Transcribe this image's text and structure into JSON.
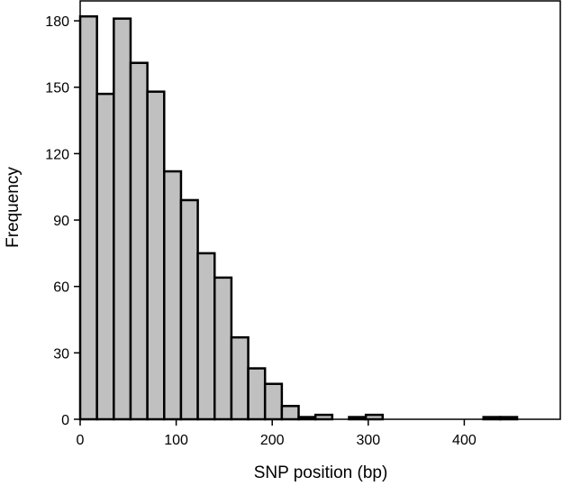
{
  "chart_data": {
    "type": "bar",
    "title": "",
    "xlabel": "SNP position (bp)",
    "ylabel": "Frequency",
    "xlim": [
      0,
      500
    ],
    "ylim": [
      0,
      189
    ],
    "bin_width": 17.5,
    "bin_starts": [
      0,
      17.5,
      35,
      52.5,
      70,
      87.5,
      105,
      122.5,
      140,
      157.5,
      175,
      192.5,
      210,
      227.5,
      245,
      262.5,
      280,
      297.5,
      315,
      332.5,
      350,
      367.5,
      385,
      402.5,
      420,
      437.5
    ],
    "values": [
      182,
      147,
      181,
      161,
      148,
      112,
      99,
      75,
      64,
      37,
      23,
      16,
      6,
      1,
      2,
      0,
      1,
      2,
      0,
      0,
      0,
      0,
      0,
      0,
      1,
      1
    ],
    "x_ticks": [
      0,
      100,
      200,
      300,
      400
    ],
    "y_ticks": [
      0,
      30,
      60,
      90,
      120,
      150,
      180
    ],
    "bar_color": "#c0c0c0",
    "edge_color": "#000000",
    "grid": false,
    "legend": "none"
  }
}
